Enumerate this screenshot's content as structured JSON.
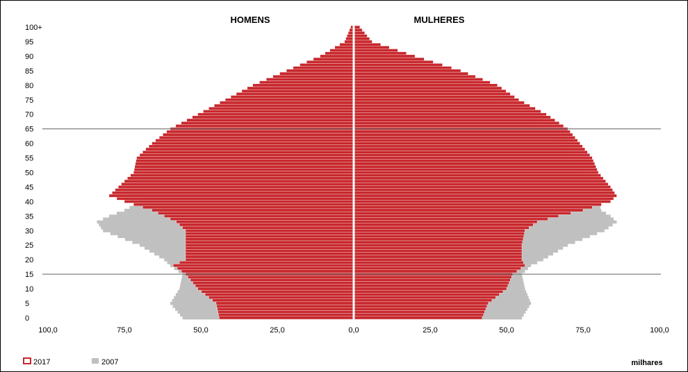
{
  "chart_data": {
    "type": "bar",
    "orientation": "horizontal",
    "subtype": "population-pyramid",
    "headers": {
      "left": "HOMENS",
      "right": "MULHERES"
    },
    "y_tick_labels": [
      "100+",
      "95",
      "90",
      "85",
      "80",
      "75",
      "70",
      "65",
      "60",
      "55",
      "50",
      "45",
      "40",
      "35",
      "30",
      "25",
      "20",
      "15",
      "10",
      "5",
      "0"
    ],
    "x_tick_labels": [
      "100,0",
      "75,0",
      "50,0",
      "25,0",
      "0,0",
      "25,0",
      "50,0",
      "75,0",
      "100,0"
    ],
    "xlim": [
      -100,
      100
    ],
    "ylim": [
      0,
      100
    ],
    "units_label": "milhares",
    "reference_lines_at_age": [
      15,
      65
    ],
    "legend": {
      "placement": "bottom-left",
      "items": [
        "2017",
        "2007"
      ]
    },
    "colors": {
      "2017_fill": "#c8282d",
      "2017_stroke": "#c8282d",
      "2017_inner": "#ffffff",
      "2007": "#c0c0c0",
      "axis": "#ffffff",
      "ref_line": "#707070"
    },
    "age_anchors": [
      0,
      5,
      10,
      15,
      18,
      20,
      25,
      30,
      33,
      35,
      37,
      40,
      42,
      45,
      50,
      55,
      60,
      65,
      70,
      75,
      80,
      85,
      90,
      95,
      100
    ],
    "series": [
      {
        "name": "2017",
        "side": "men",
        "values": [
          44,
          45,
          51,
          55,
          59,
          55,
          55,
          55,
          58,
          62,
          66,
          75,
          80,
          77,
          72,
          71,
          66,
          60,
          51,
          42,
          33,
          22,
          11,
          3,
          1
        ]
      },
      {
        "name": "2017",
        "side": "women",
        "values": [
          42,
          44,
          50,
          52,
          56,
          55,
          55,
          56,
          60,
          67,
          75,
          84,
          86,
          84,
          80,
          78,
          74,
          70,
          63,
          54,
          47,
          35,
          20,
          6,
          2
        ]
      },
      {
        "name": "2007",
        "side": "men",
        "values": [
          56,
          60,
          57,
          56,
          60,
          62,
          70,
          82,
          84,
          80,
          75,
          70,
          70,
          69,
          68,
          66,
          62,
          57,
          47,
          37,
          27,
          16,
          7,
          2,
          1
        ]
      },
      {
        "name": "2007",
        "side": "women",
        "values": [
          55,
          58,
          56,
          55,
          58,
          62,
          70,
          82,
          86,
          84,
          81,
          80,
          79,
          77,
          76,
          73,
          68,
          63,
          56,
          48,
          40,
          29,
          14,
          4,
          1
        ]
      }
    ]
  }
}
